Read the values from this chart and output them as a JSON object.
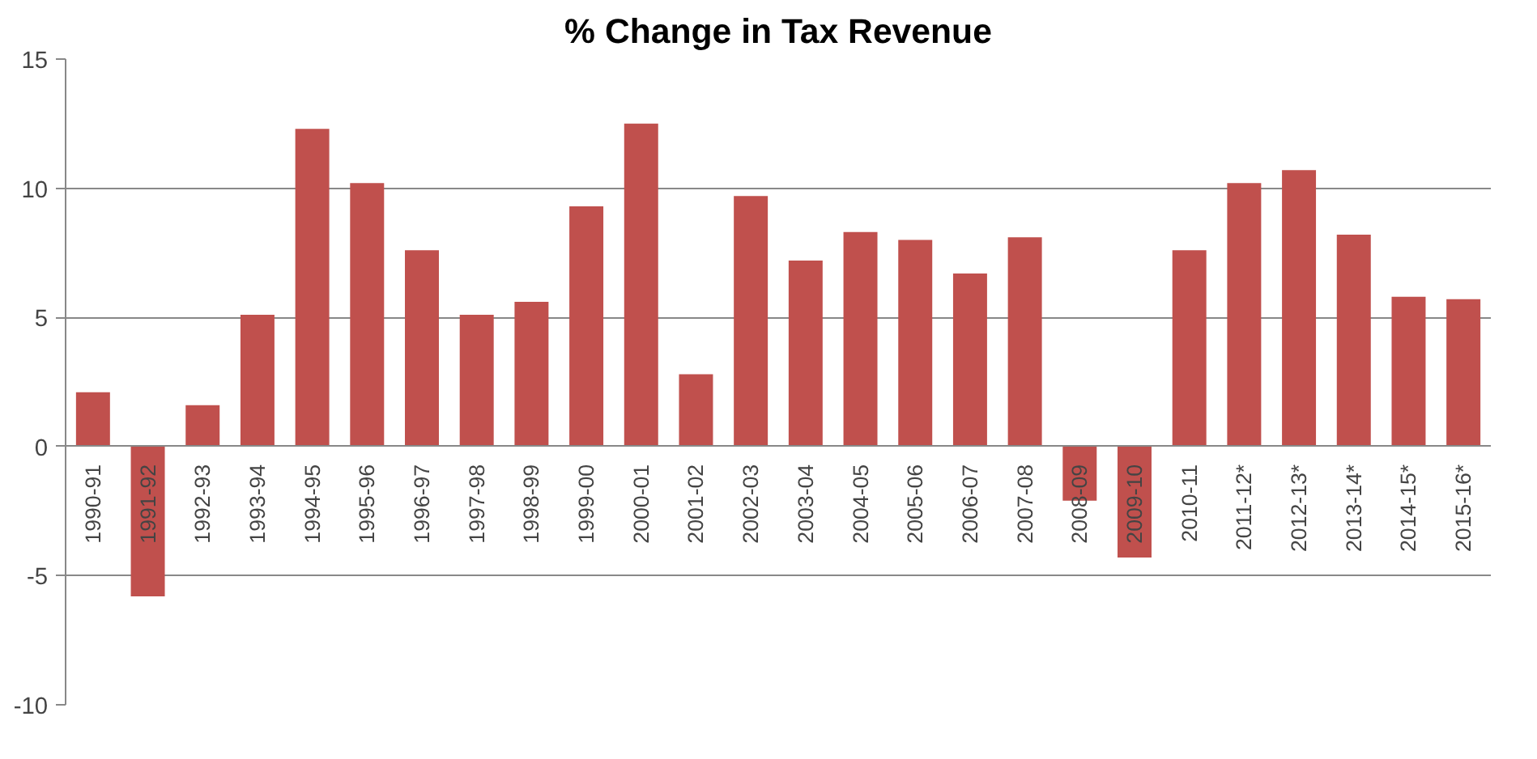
{
  "chart_data": {
    "type": "bar",
    "title": "% Change in Tax Revenue",
    "categories": [
      "1990-91",
      "1991-92",
      "1992-93",
      "1993-94",
      "1994-95",
      "1995-96",
      "1996-97",
      "1997-98",
      "1998-99",
      "1999-00",
      "2000-01",
      "2001-02",
      "2002-03",
      "2003-04",
      "2004-05",
      "2005-06",
      "2006-07",
      "2007-08",
      "2008-09",
      "2009-10",
      "2010-11",
      "2011-12*",
      "2012-13*",
      "2013-14*",
      "2014-15*",
      "2015-16*"
    ],
    "values": [
      2.1,
      -5.8,
      1.6,
      5.1,
      12.3,
      10.2,
      7.6,
      5.1,
      5.6,
      9.3,
      12.5,
      2.8,
      9.7,
      7.2,
      8.3,
      8.0,
      6.7,
      8.1,
      -2.1,
      -4.3,
      7.6,
      10.2,
      10.7,
      8.2,
      5.8,
      5.7
    ],
    "color": "#c0504d",
    "ylim": [
      -10,
      15
    ],
    "yticks": [
      -10,
      -5,
      0,
      5,
      10,
      15
    ],
    "grid": "y"
  }
}
